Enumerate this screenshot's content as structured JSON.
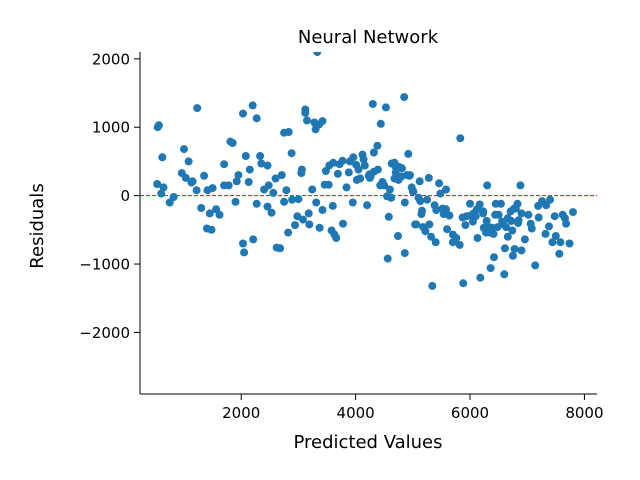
{
  "chart_data": {
    "type": "scatter",
    "title": "Neural Network",
    "xlabel": "Predicted Values",
    "ylabel": "Residuals",
    "xlim": [
      230,
      8220
    ],
    "ylim": [
      -2900,
      2100
    ],
    "xticks": [
      2000,
      4000,
      6000,
      8000
    ],
    "xtick_labels": [
      "2000",
      "4000",
      "6000",
      "8000"
    ],
    "yticks": [
      -2000,
      -1000,
      0,
      1000,
      2000
    ],
    "ytick_labels": [
      "−2000",
      "−1000",
      "0",
      "1000",
      "2000"
    ],
    "grid": false,
    "point_color": "#1f77b4",
    "reference_line": {
      "y": 0,
      "color": "#ff0000",
      "style": "dashed"
    },
    "x": [
      530,
      600,
      560,
      620,
      750,
      820,
      960,
      1030,
      1080,
      1150,
      1220,
      1300,
      1350,
      1410,
      1450,
      1500,
      1560,
      1620,
      1700,
      1780,
      1850,
      1900,
      1950,
      2030,
      2080,
      2130,
      2200,
      2270,
      2330,
      2400,
      2460,
      2530,
      2600,
      2680,
      2750,
      2820,
      2880,
      2940,
      3000,
      3060,
      3120,
      3180,
      3240,
      3300,
      3360,
      3420,
      3480,
      3540,
      3600,
      3660,
      3720,
      3780,
      3840,
      3900,
      3960,
      4020,
      4080,
      4140,
      4200,
      4260,
      4320,
      4380,
      4440,
      4500,
      4560,
      4620,
      4680,
      4740,
      4800,
      4860,
      4920,
      4980,
      5040,
      5100,
      5160,
      5220,
      5280,
      5340,
      5400,
      5460,
      5520,
      5580,
      5640,
      5700,
      5760,
      5820,
      5880,
      5940,
      6000,
      6060,
      6120,
      6180,
      6240,
      6300,
      6360,
      6420,
      6480,
      6540,
      6600,
      6660,
      6720,
      6780,
      6840,
      6900,
      6960,
      7020,
      7080,
      7140,
      7200,
      7260,
      7320,
      7380,
      7440,
      7500,
      7560,
      7620,
      7680,
      7740,
      7800,
      1230,
      2030,
      2270,
      2830,
      3120,
      3420,
      4300,
      4530,
      4850,
      5830,
      6450,
      6800,
      540,
      1000,
      1480,
      2050,
      2980,
      3630,
      4580,
      5180,
      5320,
      5920,
      6230,
      6750,
      3330,
      3150,
      3280,
      2210,
      1810,
      4760,
      4940,
      5410,
      5600,
      6100,
      6380,
      6900,
      7060,
      640,
      1130,
      1920,
      2460,
      3610,
      4320,
      4700,
      5060,
      5540,
      6280,
      6880,
      7580,
      2620,
      2890,
      3050,
      3460,
      3770,
      3880,
      4050,
      4120,
      4230,
      4390,
      4470,
      4630,
      4700,
      4750,
      4810,
      4900,
      5010,
      5120,
      5250,
      5380,
      5480,
      6050,
      6170,
      6230,
      6330,
      6410,
      6500,
      6580,
      6660,
      6740,
      6850,
      2480,
      2560,
      2710,
      2790,
      3190,
      3310,
      3530,
      3690,
      4010,
      4160,
      4240,
      4430,
      4600,
      4680,
      4860,
      5000,
      5150,
      5290,
      5700,
      5870,
      6010,
      6130,
      6290,
      6370,
      6440,
      6560,
      6630,
      6710,
      6770,
      6830,
      7330,
      7480,
      7660,
      1400,
      1700,
      2150,
      2350,
      2750,
      3080,
      3370,
      3580,
      3950,
      4250,
      4550,
      4620,
      4950,
      5130,
      5580,
      6350,
      6610,
      7190,
      7400
    ],
    "y": [
      170,
      30,
      1030,
      560,
      -100,
      -20,
      330,
      260,
      500,
      210,
      80,
      -180,
      290,
      80,
      -260,
      110,
      -200,
      -280,
      460,
      150,
      770,
      -90,
      300,
      -700,
      580,
      200,
      1320,
      -120,
      580,
      90,
      -160,
      -250,
      250,
      -770,
      920,
      -540,
      620,
      -430,
      -50,
      380,
      1260,
      -260,
      90,
      970,
      1040,
      -210,
      360,
      440,
      -150,
      -620,
      460,
      -410,
      120,
      500,
      560,
      230,
      250,
      530,
      -140,
      280,
      350,
      730,
      1050,
      150,
      -920,
      -30,
      480,
      -590,
      280,
      -840,
      610,
      120,
      -420,
      -30,
      -220,
      -520,
      260,
      -1320,
      -680,
      180,
      -190,
      90,
      -290,
      -570,
      -620,
      -720,
      -1280,
      -300,
      -120,
      -260,
      -200,
      -1200,
      -470,
      150,
      -1060,
      -900,
      -460,
      -120,
      -1150,
      -600,
      -370,
      -780,
      -400,
      -260,
      -640,
      -280,
      -480,
      -1020,
      -320,
      -80,
      -560,
      -450,
      -680,
      -590,
      -850,
      -280,
      -410,
      -700,
      -240,
      1280,
      1200,
      1130,
      930,
      1210,
      1090,
      1340,
      1290,
      1440,
      840,
      -120,
      -190,
      1000,
      680,
      -500,
      -830,
      -300,
      -570,
      -310,
      -460,
      -600,
      -430,
      -230,
      -880,
      2100,
      1100,
      1070,
      -640,
      790,
      420,
      290,
      -210,
      -490,
      -300,
      -470,
      -800,
      -410,
      120,
      190,
      210,
      440,
      480,
      630,
      420,
      -420,
      -270,
      -540,
      150,
      -680,
      -760,
      -60,
      330,
      160,
      510,
      340,
      380,
      600,
      290,
      380,
      200,
      470,
      340,
      230,
      400,
      300,
      60,
      210,
      -60,
      -140,
      30,
      -380,
      -130,
      -260,
      -460,
      -560,
      -280,
      -410,
      -330,
      -510,
      -360,
      150,
      40,
      300,
      80,
      -420,
      -100,
      160,
      320,
      450,
      440,
      310,
      150,
      90,
      250,
      -100,
      60,
      -270,
      -420,
      -680,
      -320,
      -290,
      -620,
      -370,
      -530,
      -280,
      -380,
      -460,
      -230,
      -190,
      -120,
      -140,
      -300,
      -330,
      -480,
      150,
      380,
      470,
      -90,
      -350,
      -470,
      -510,
      -100,
      260,
      -10,
      -30,
      300,
      -80,
      -200,
      -540,
      -770,
      -150,
      -60
    ],
    "point_radius": 4
  }
}
